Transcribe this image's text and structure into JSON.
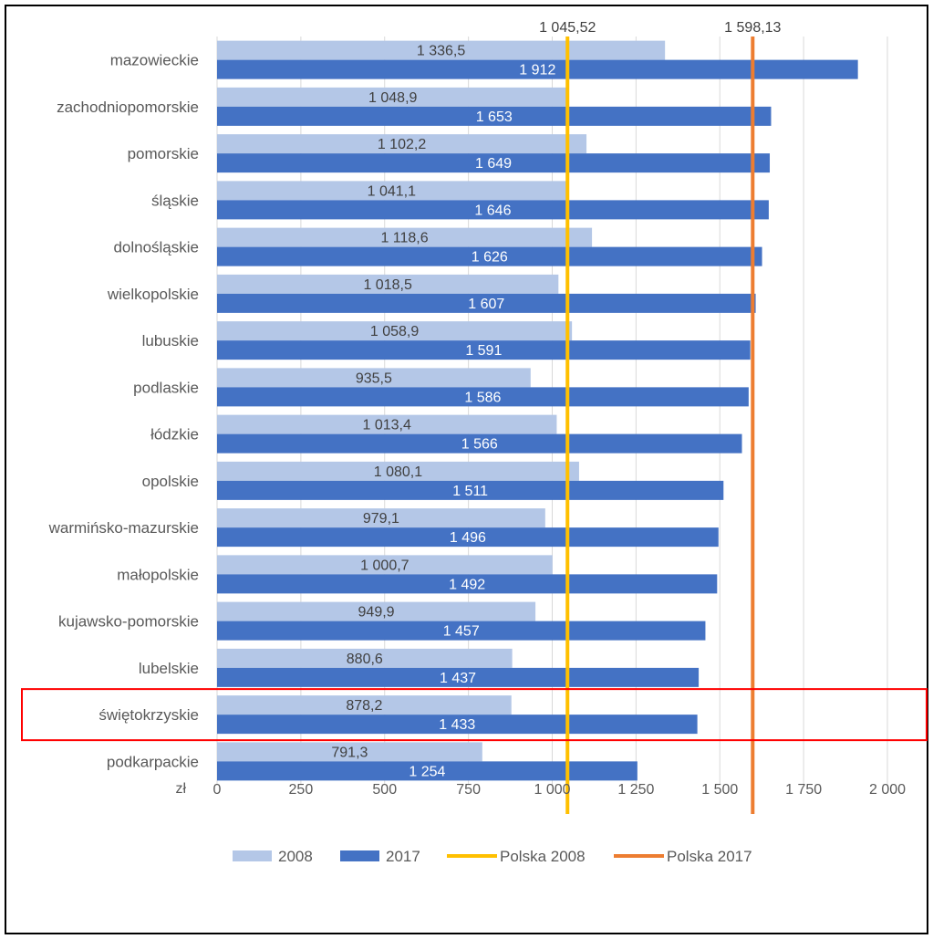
{
  "chart_data": {
    "type": "bar",
    "orientation": "horizontal",
    "categories": [
      "mazowieckie",
      "zachodniopomorskie",
      "pomorskie",
      "śląskie",
      "dolnośląskie",
      "wielkopolskie",
      "lubuskie",
      "podlaskie",
      "łódzkie",
      "opolskie",
      "warmińsko-mazurskie",
      "małopolskie",
      "kujawsko-pomorskie",
      "lubelskie",
      "świętokrzyskie",
      "podkarpackie"
    ],
    "series": [
      {
        "name": "2008",
        "color": "#b4c7e7",
        "values": [
          1336.5,
          1048.9,
          1102.2,
          1041.1,
          1118.6,
          1018.5,
          1058.9,
          935.5,
          1013.4,
          1080.1,
          979.1,
          1000.7,
          949.9,
          880.6,
          878.2,
          791.3
        ],
        "labels": [
          "1 336,5",
          "1 048,9",
          "1 102,2",
          "1 041,1",
          "1 118,6",
          "1 018,5",
          "1 058,9",
          "935,5",
          "1 013,4",
          "1 080,1",
          "979,1",
          "1 000,7",
          "949,9",
          "880,6",
          "878,2",
          "791,3"
        ]
      },
      {
        "name": "2017",
        "color": "#4472c4",
        "values": [
          1912,
          1653,
          1649,
          1646,
          1626,
          1607,
          1591,
          1586,
          1566,
          1511,
          1496,
          1492,
          1457,
          1437,
          1433,
          1254
        ],
        "labels": [
          "1 912",
          "1 653",
          "1 649",
          "1 646",
          "1 626",
          "1 607",
          "1 591",
          "1 586",
          "1 566",
          "1 511",
          "1 496",
          "1 492",
          "1 457",
          "1 437",
          "1 433",
          "1 254"
        ]
      }
    ],
    "reference_lines": [
      {
        "name": "Polska 2008",
        "value": 1045.52,
        "label": "1 045,52",
        "color": "#ffc000"
      },
      {
        "name": "Polska 2017",
        "value": 1598.13,
        "label": "1 598,13",
        "color": "#ed7d31"
      }
    ],
    "xlim": [
      0,
      2000
    ],
    "xticks": [
      0,
      250,
      500,
      750,
      1000,
      1250,
      1500,
      1750,
      2000
    ],
    "xtick_labels": [
      "0",
      "250",
      "500",
      "750",
      "1 000",
      "1 250",
      "1 500",
      "1 750",
      "2 000"
    ],
    "x_unit": "zł",
    "grid": "vertical",
    "legend_position": "bottom",
    "highlighted_category": "świętokrzyskie",
    "highlight_color": "#ff0000"
  }
}
